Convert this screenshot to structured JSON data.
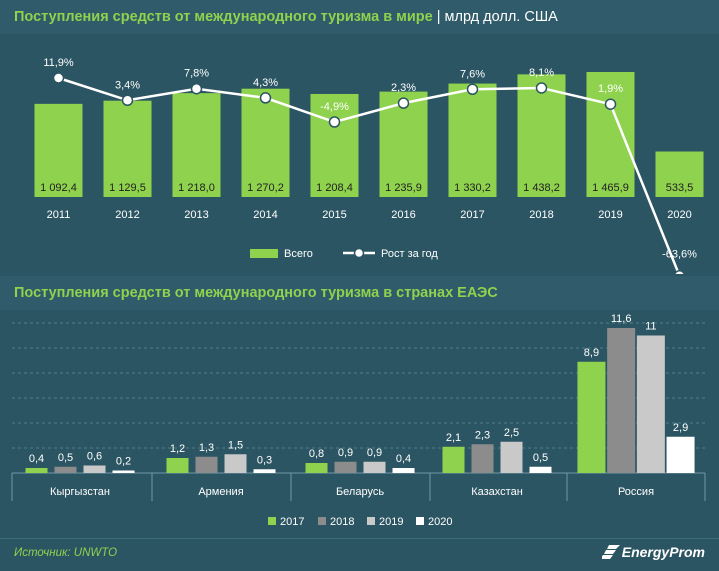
{
  "header1": {
    "title": "Поступления средств от международного туризма в мире",
    "separator": "|",
    "unit": "млрд долл. США"
  },
  "header2": {
    "title": "Поступления средств от международного туризма в странах ЕАЭС"
  },
  "footer": {
    "source": "Источник: UNWTO",
    "brand": "EnergyProm"
  },
  "colors": {
    "green": "#8fd24e",
    "dark_gray": "#8c8c8c",
    "light_gray": "#c9c9c9",
    "white": "#ffffff",
    "background": "#2c5563"
  },
  "chart_data": [
    {
      "type": "bar",
      "categories": [
        "2011",
        "2012",
        "2013",
        "2014",
        "2015",
        "2016",
        "2017",
        "2018",
        "2019",
        "2020"
      ],
      "series": [
        {
          "name": "Всего",
          "type": "bar",
          "values": [
            1092.4,
            1129.5,
            1218.0,
            1270.2,
            1208.4,
            1235.9,
            1330.2,
            1438.2,
            1465.9,
            533.5
          ],
          "labels": [
            "1 092,4",
            "1 129,5",
            "1 218,0",
            "1 270,2",
            "1 208,4",
            "1 235,9",
            "1 330,2",
            "1 438,2",
            "1 465,9",
            "533,5"
          ]
        },
        {
          "name": "Рост за год",
          "type": "line",
          "values": [
            11.9,
            3.4,
            7.8,
            4.3,
            -4.9,
            2.3,
            7.6,
            8.1,
            1.9,
            -63.6
          ],
          "labels": [
            "11,9%",
            "3,4%",
            "7,8%",
            "4,3%",
            "-4,9%",
            "2,3%",
            "7,6%",
            "8,1%",
            "1,9%",
            "-63,6%"
          ]
        }
      ],
      "legend": [
        "Всего",
        "Рост за год"
      ],
      "legend_position": "bottom",
      "grid": false
    },
    {
      "type": "bar",
      "categories": [
        "Кыргызстан",
        "Армения",
        "Беларусь",
        "Казахстан",
        "Россия"
      ],
      "series": [
        {
          "name": "2017",
          "values": [
            0.4,
            1.2,
            0.8,
            2.1,
            8.9
          ],
          "labels": [
            "0,4",
            "1,2",
            "0,8",
            "2,1",
            "8,9"
          ]
        },
        {
          "name": "2018",
          "values": [
            0.5,
            1.3,
            0.9,
            2.3,
            11.6
          ],
          "labels": [
            "0,5",
            "1,3",
            "0,9",
            "2,3",
            "11,6"
          ]
        },
        {
          "name": "2019",
          "values": [
            0.6,
            1.5,
            0.9,
            2.5,
            11.0
          ],
          "labels": [
            "0,6",
            "1,5",
            "0,9",
            "2,5",
            "11"
          ]
        },
        {
          "name": "2020",
          "values": [
            0.2,
            0.3,
            0.4,
            0.5,
            2.9
          ],
          "labels": [
            "0,2",
            "0,3",
            "0,4",
            "0,5",
            "2,9"
          ]
        }
      ],
      "legend": [
        "2017",
        "2018",
        "2019",
        "2020"
      ],
      "legend_position": "bottom",
      "grid": true
    }
  ]
}
